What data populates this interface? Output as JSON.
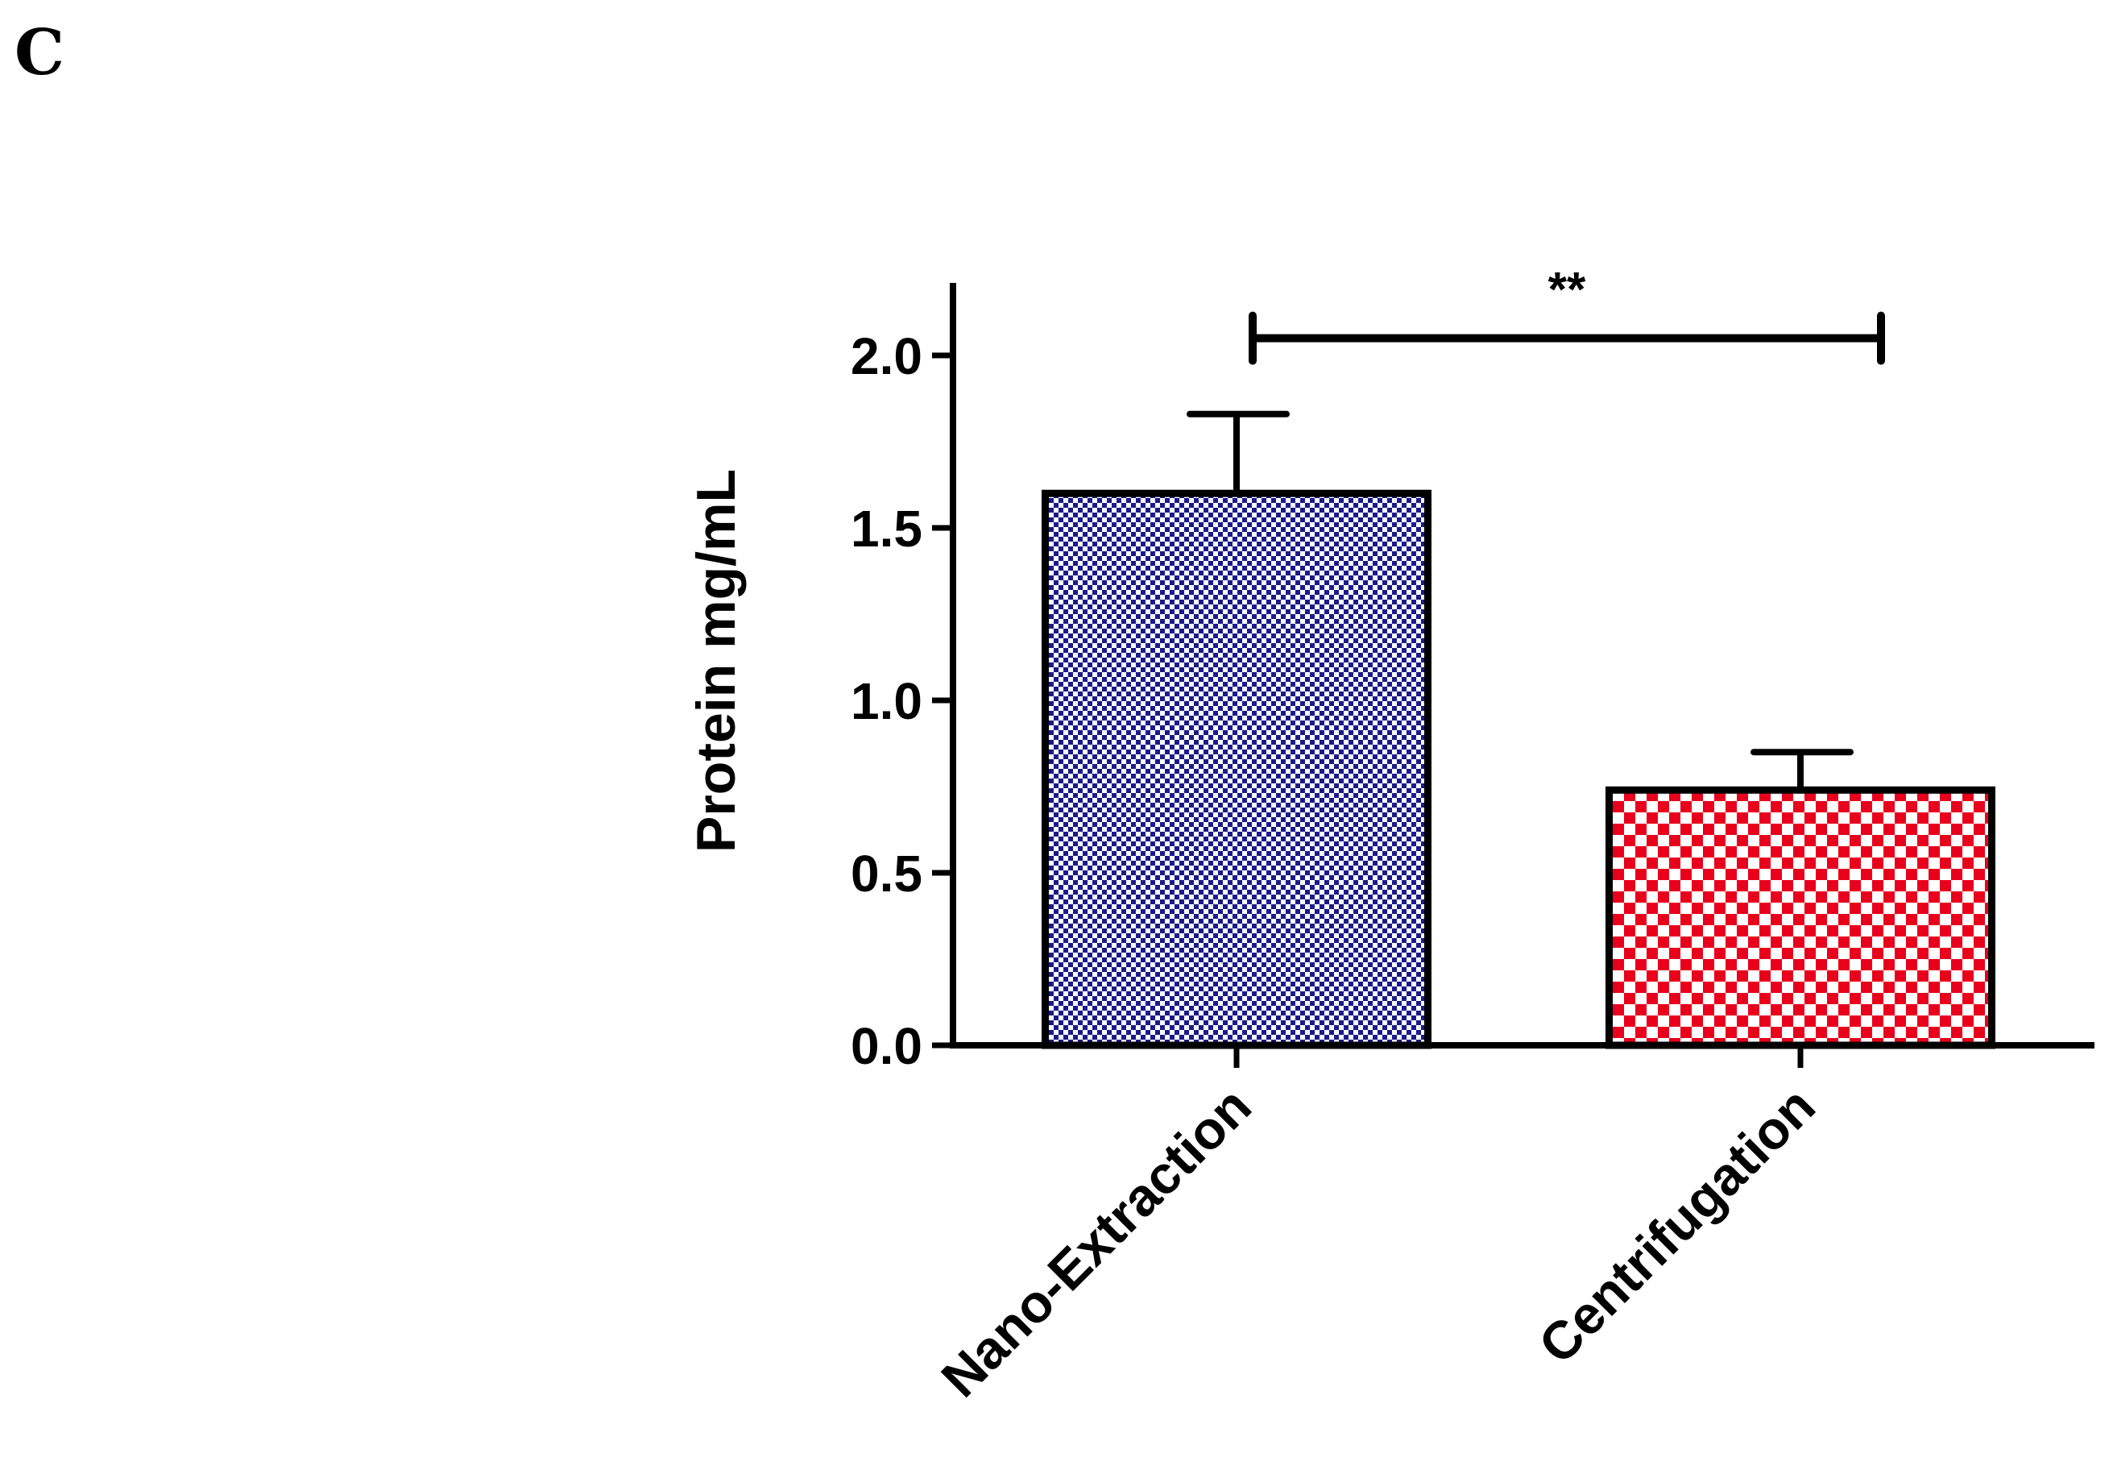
{
  "panel_label": "C",
  "chart_data": {
    "type": "bar",
    "title": "",
    "xlabel": "",
    "ylabel": "Protein mg/mL",
    "ylim": [
      0,
      2.2
    ],
    "yticks": [
      0.0,
      0.5,
      1.0,
      1.5,
      2.0
    ],
    "ytick_labels": [
      "0.0",
      "0.5",
      "1.0",
      "1.5",
      "2.0"
    ],
    "categories": [
      "Nano-Extraction",
      "Centrifugation"
    ],
    "values": [
      1.6,
      0.74
    ],
    "errors": [
      0.23,
      0.11
    ],
    "bar_colors": [
      "#1a1a8c",
      "#e8001c"
    ],
    "significance": {
      "label": "**",
      "between": [
        "Nano-Extraction",
        "Centrifugation"
      ],
      "y": 2.05
    }
  }
}
